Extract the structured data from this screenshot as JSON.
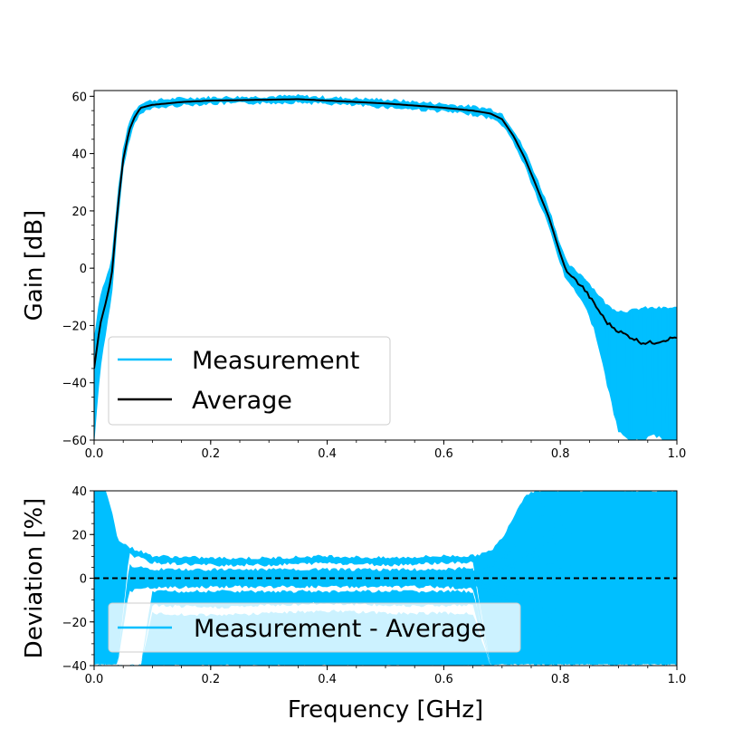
{
  "chart_data": [
    {
      "type": "line",
      "ylabel": "Gain [dB]",
      "xlabel": "",
      "xlim": [
        0.0,
        1.0
      ],
      "ylim": [
        -60,
        62
      ],
      "xticks": [
        "0.0",
        "0.2",
        "0.4",
        "0.6",
        "0.8",
        "1.0"
      ],
      "yticks": [
        "60",
        "40",
        "20",
        "0",
        "−20",
        "−40",
        "−60"
      ],
      "legend": {
        "position": "lower-left",
        "entries": [
          "Measurement",
          "Average"
        ]
      },
      "series": [
        {
          "name": "Average",
          "color": "#000000",
          "x": [
            0.0,
            0.01,
            0.02,
            0.03,
            0.04,
            0.05,
            0.06,
            0.07,
            0.08,
            0.1,
            0.15,
            0.2,
            0.3,
            0.35,
            0.4,
            0.5,
            0.6,
            0.65,
            0.68,
            0.7,
            0.72,
            0.74,
            0.76,
            0.78,
            0.8,
            0.81,
            0.82,
            0.84,
            0.86,
            0.88,
            0.9,
            0.92,
            0.94,
            0.96,
            0.98,
            1.0
          ],
          "values": [
            -35,
            -20,
            -12,
            -3,
            20,
            38,
            48,
            53,
            56,
            57,
            58,
            58.5,
            58.8,
            59,
            58.5,
            57.5,
            56,
            55,
            54,
            52,
            46,
            38,
            28,
            18,
            5,
            -1,
            -3,
            -7,
            -13,
            -19,
            -22,
            -24,
            -26,
            -26,
            -25,
            -24
          ]
        },
        {
          "name": "Measurement",
          "color": "#00bfff",
          "x": [
            0.0,
            0.01,
            0.02,
            0.03,
            0.04,
            0.05,
            0.06,
            0.07,
            0.08,
            0.1,
            0.15,
            0.2,
            0.3,
            0.35,
            0.4,
            0.5,
            0.6,
            0.65,
            0.68,
            0.7,
            0.72,
            0.74,
            0.76,
            0.78,
            0.8,
            0.81,
            0.82,
            0.84,
            0.86,
            0.88,
            0.9,
            0.92,
            0.94,
            0.96,
            0.98,
            1.0
          ],
          "upper": [
            -25,
            -10,
            -4,
            2,
            24,
            41,
            51,
            55,
            57.5,
            58.5,
            59.2,
            59.5,
            59.8,
            60,
            59.5,
            58.7,
            57.2,
            56.3,
            55.5,
            53.8,
            48,
            40.5,
            31,
            21,
            8,
            2,
            0,
            -3,
            -8,
            -13,
            -15,
            -15,
            -14,
            -14,
            -14,
            -14
          ],
          "lower": [
            -60,
            -35,
            -22,
            -10,
            16,
            35,
            45,
            51,
            54.5,
            55.8,
            57,
            57.5,
            57.8,
            58,
            57.5,
            56.3,
            54.8,
            53.7,
            52.5,
            50.2,
            44,
            35.5,
            25,
            15,
            2,
            -4,
            -6,
            -12,
            -22,
            -40,
            -57,
            -60,
            -60,
            -58,
            -60,
            -60
          ]
        }
      ]
    },
    {
      "type": "line",
      "ylabel": "Deviation [%]",
      "xlabel": "Frequency [GHz]",
      "xlim": [
        0.0,
        1.0
      ],
      "ylim": [
        -40,
        40
      ],
      "xticks": [
        "0.0",
        "0.2",
        "0.4",
        "0.6",
        "0.8",
        "1.0"
      ],
      "yticks": [
        "40",
        "20",
        "0",
        "−20",
        "−40"
      ],
      "reference_line": {
        "y": 0,
        "style": "dashed",
        "color": "#000000"
      },
      "legend": {
        "position": "lower-left",
        "entries": [
          "Measurement - Average"
        ]
      },
      "series": [
        {
          "name": "Measurement - Average",
          "color": "#00bfff",
          "x": [
            0.0,
            0.02,
            0.03,
            0.04,
            0.06,
            0.08,
            0.1,
            0.2,
            0.3,
            0.4,
            0.5,
            0.6,
            0.65,
            0.68,
            0.7,
            0.72,
            0.74,
            0.76,
            0.78,
            0.8,
            0.85,
            0.9,
            0.95,
            1.0
          ],
          "upper": [
            40,
            40,
            30,
            18,
            14,
            12,
            10,
            9,
            9,
            10,
            9,
            10,
            10,
            12,
            18,
            28,
            38,
            40,
            40,
            40,
            40,
            40,
            40,
            40
          ],
          "lower": [
            -40,
            -40,
            -40,
            -40,
            -40,
            -40,
            -40,
            -40,
            -40,
            -40,
            -40,
            -40,
            -40,
            -40,
            -40,
            -40,
            -40,
            -40,
            -40,
            -40,
            -40,
            -40,
            -40,
            -40
          ],
          "inner_upper": [
            40,
            40,
            22,
            8,
            5,
            4,
            3,
            3,
            3,
            3,
            3,
            3,
            4,
            6,
            10,
            16,
            24,
            32,
            40,
            40,
            40,
            40,
            40,
            40
          ],
          "inner_lower": [
            -40,
            -40,
            -20,
            -7,
            -5,
            -4,
            -3.5,
            -3,
            -3,
            -3,
            -3,
            -3,
            -4,
            -6,
            -10,
            -18,
            -26,
            -34,
            -40,
            -40,
            -40,
            -40,
            -40,
            -40
          ],
          "gap_upper": [
            -40,
            -40,
            -40,
            -40,
            -40,
            -40,
            -6,
            -6,
            -6,
            -6,
            -6,
            -6,
            -6,
            -40,
            -40,
            -40,
            -40,
            -40,
            -40,
            -40,
            -40,
            -40,
            -40,
            -40
          ],
          "gap_lower": [
            -40,
            -40,
            -40,
            -40,
            -40,
            -40,
            -11,
            -12,
            -11,
            -10,
            -11,
            -11,
            -11,
            -40,
            -40,
            -40,
            -40,
            -40,
            -40,
            -40,
            -40,
            -40,
            -40,
            -40
          ]
        }
      ]
    }
  ]
}
